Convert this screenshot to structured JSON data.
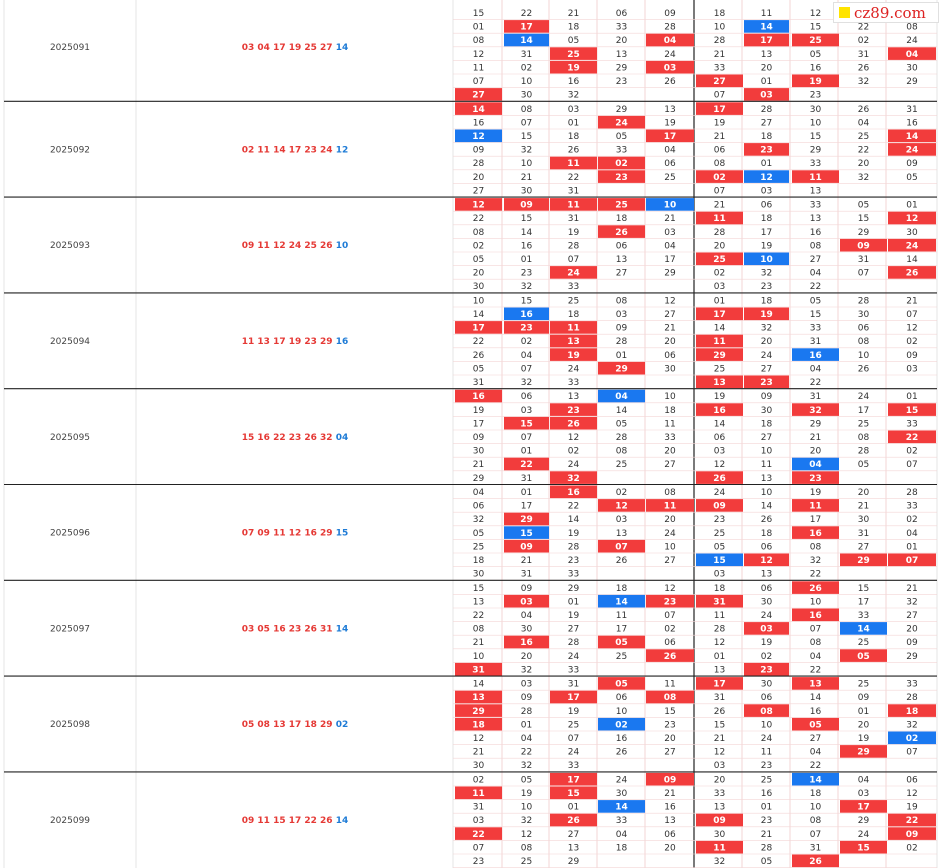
{
  "site_logo": {
    "text": "cz89.com",
    "mark_color": "#ffe400"
  },
  "colors": {
    "red_cell": "#f23c3c",
    "blue_cell": "#1a78f0",
    "red_text": "#e53935",
    "blue_text": "#1e7bd6",
    "grid": "#f3d6d6"
  },
  "chart_data": {
    "type": "table",
    "top_partial": {
      "left": [
        [
          15,
          22,
          21,
          6,
          9
        ],
        [
          1,
          17,
          18,
          33,
          28
        ],
        [
          8,
          14,
          5,
          20,
          4
        ],
        [
          12,
          31,
          25,
          13,
          24
        ],
        [
          11,
          2,
          19,
          29,
          3
        ],
        [
          7,
          10,
          16,
          23,
          26
        ],
        [
          27,
          30,
          32,
          null,
          null
        ]
      ],
      "right": [
        [
          18,
          11,
          12,
          null,
          null
        ],
        [
          10,
          14,
          15,
          22,
          8
        ],
        [
          28,
          17,
          25,
          2,
          24
        ],
        [
          21,
          13,
          5,
          31,
          4
        ],
        [
          33,
          20,
          16,
          26,
          30
        ],
        [
          27,
          1,
          19,
          32,
          29
        ],
        [
          7,
          3,
          23,
          null,
          null
        ]
      ]
    },
    "rows": [
      {
        "period": "2025091",
        "reds": [
          "03",
          "04",
          "17",
          "19",
          "25",
          "27"
        ],
        "blue": "14",
        "left": [
          [
            27,
            30,
            32,
            null,
            null
          ]
        ],
        "right": [
          [
            7,
            3,
            23,
            null,
            null
          ]
        ]
      },
      {
        "period": "2025092",
        "reds": [
          "02",
          "11",
          "14",
          "17",
          "23",
          "24"
        ],
        "blue": "12",
        "left": [
          [
            14,
            8,
            3,
            29,
            13
          ],
          [
            16,
            7,
            1,
            24,
            19
          ],
          [
            12,
            15,
            18,
            5,
            17
          ],
          [
            9,
            32,
            26,
            33,
            4
          ],
          [
            28,
            10,
            11,
            2,
            6
          ],
          [
            20,
            21,
            22,
            23,
            25
          ],
          [
            27,
            30,
            31,
            null,
            null
          ]
        ],
        "right": [
          [
            17,
            28,
            30,
            26,
            31
          ],
          [
            19,
            27,
            10,
            4,
            16
          ],
          [
            21,
            18,
            15,
            25,
            14
          ],
          [
            6,
            23,
            29,
            22,
            24
          ],
          [
            8,
            1,
            33,
            20,
            9
          ],
          [
            2,
            12,
            11,
            32,
            5
          ],
          [
            7,
            3,
            13,
            null,
            null
          ]
        ]
      },
      {
        "period": "2025093",
        "reds": [
          "09",
          "11",
          "12",
          "24",
          "25",
          "26"
        ],
        "blue": "10",
        "left": [
          [
            12,
            9,
            11,
            25,
            10
          ],
          [
            22,
            15,
            31,
            18,
            21
          ],
          [
            8,
            14,
            19,
            26,
            3
          ],
          [
            2,
            16,
            28,
            6,
            4
          ],
          [
            5,
            1,
            7,
            13,
            17
          ],
          [
            20,
            23,
            24,
            27,
            29
          ],
          [
            30,
            32,
            33,
            null,
            null
          ]
        ],
        "right": [
          [
            21,
            6,
            33,
            5,
            1
          ],
          [
            11,
            18,
            13,
            15,
            12
          ],
          [
            28,
            17,
            16,
            29,
            30
          ],
          [
            20,
            19,
            8,
            9,
            24
          ],
          [
            25,
            10,
            27,
            31,
            14
          ],
          [
            2,
            32,
            4,
            7,
            26
          ],
          [
            3,
            23,
            22,
            null,
            null
          ]
        ]
      },
      {
        "period": "2025094",
        "reds": [
          "11",
          "13",
          "17",
          "19",
          "23",
          "29"
        ],
        "blue": "16",
        "left": [
          [
            10,
            15,
            25,
            8,
            12
          ],
          [
            14,
            16,
            18,
            3,
            27
          ],
          [
            17,
            23,
            11,
            9,
            21
          ],
          [
            22,
            2,
            13,
            28,
            20
          ],
          [
            26,
            4,
            19,
            1,
            6
          ],
          [
            5,
            7,
            24,
            29,
            30
          ],
          [
            31,
            32,
            33,
            null,
            null
          ]
        ],
        "right": [
          [
            1,
            18,
            5,
            28,
            21
          ],
          [
            17,
            19,
            15,
            30,
            7
          ],
          [
            14,
            32,
            33,
            6,
            12
          ],
          [
            11,
            20,
            31,
            8,
            2
          ],
          [
            29,
            24,
            16,
            10,
            9
          ],
          [
            25,
            27,
            4,
            26,
            3
          ],
          [
            13,
            23,
            22,
            null,
            null
          ]
        ]
      },
      {
        "period": "2025095",
        "reds": [
          "15",
          "16",
          "22",
          "23",
          "26",
          "32"
        ],
        "blue": "04",
        "left": [
          [
            16,
            6,
            13,
            4,
            10
          ],
          [
            19,
            3,
            23,
            14,
            18
          ],
          [
            17,
            15,
            26,
            5,
            11
          ],
          [
            9,
            7,
            12,
            28,
            33
          ],
          [
            30,
            1,
            2,
            8,
            20
          ],
          [
            21,
            22,
            24,
            25,
            27
          ],
          [
            29,
            31,
            32,
            null,
            null
          ]
        ],
        "right": [
          [
            19,
            9,
            31,
            24,
            1
          ],
          [
            16,
            30,
            32,
            17,
            15
          ],
          [
            14,
            18,
            29,
            25,
            33
          ],
          [
            6,
            27,
            21,
            8,
            22
          ],
          [
            3,
            10,
            20,
            28,
            2
          ],
          [
            12,
            11,
            4,
            5,
            7
          ],
          [
            26,
            13,
            23,
            null,
            null
          ]
        ]
      },
      {
        "period": "2025096",
        "reds": [
          "07",
          "09",
          "11",
          "12",
          "16",
          "29"
        ],
        "blue": "15",
        "left": [
          [
            4,
            1,
            16,
            2,
            8
          ],
          [
            6,
            17,
            22,
            12,
            11
          ],
          [
            32,
            29,
            14,
            3,
            20
          ],
          [
            5,
            15,
            19,
            13,
            24
          ],
          [
            25,
            9,
            28,
            7,
            10
          ],
          [
            18,
            21,
            23,
            26,
            27
          ],
          [
            30,
            31,
            33,
            null,
            null
          ]
        ],
        "right": [
          [
            24,
            10,
            19,
            20,
            28
          ],
          [
            9,
            14,
            11,
            21,
            33
          ],
          [
            23,
            26,
            17,
            30,
            2
          ],
          [
            25,
            18,
            16,
            31,
            4
          ],
          [
            5,
            6,
            8,
            27,
            1
          ],
          [
            15,
            12,
            32,
            29,
            7
          ],
          [
            3,
            13,
            22,
            null,
            null
          ]
        ]
      },
      {
        "period": "2025097",
        "reds": [
          "03",
          "05",
          "16",
          "23",
          "26",
          "31"
        ],
        "blue": "14",
        "left": [
          [
            15,
            9,
            29,
            18,
            12
          ],
          [
            13,
            3,
            1,
            14,
            23
          ],
          [
            22,
            4,
            19,
            11,
            7
          ],
          [
            8,
            30,
            27,
            17,
            2
          ],
          [
            21,
            16,
            28,
            5,
            6
          ],
          [
            10,
            20,
            24,
            25,
            26
          ],
          [
            31,
            32,
            33,
            null,
            null
          ]
        ],
        "right": [
          [
            18,
            6,
            26,
            15,
            21
          ],
          [
            31,
            30,
            10,
            17,
            32
          ],
          [
            11,
            24,
            16,
            33,
            27
          ],
          [
            28,
            3,
            7,
            14,
            20
          ],
          [
            12,
            19,
            8,
            25,
            9
          ],
          [
            1,
            2,
            4,
            5,
            29
          ],
          [
            13,
            23,
            22,
            null,
            null
          ]
        ]
      },
      {
        "period": "2025098",
        "reds": [
          "05",
          "08",
          "13",
          "17",
          "18",
          "29"
        ],
        "blue": "02",
        "left": [
          [
            14,
            3,
            31,
            5,
            11
          ],
          [
            13,
            9,
            17,
            6,
            8
          ],
          [
            29,
            28,
            19,
            10,
            15
          ],
          [
            18,
            1,
            25,
            2,
            23
          ],
          [
            12,
            4,
            7,
            16,
            20
          ],
          [
            21,
            22,
            24,
            26,
            27
          ],
          [
            30,
            32,
            33,
            null,
            null
          ]
        ],
        "right": [
          [
            17,
            30,
            13,
            25,
            33
          ],
          [
            31,
            6,
            14,
            9,
            28
          ],
          [
            26,
            8,
            16,
            1,
            18
          ],
          [
            15,
            10,
            5,
            20,
            32
          ],
          [
            21,
            24,
            27,
            19,
            2
          ],
          [
            12,
            11,
            4,
            29,
            7
          ],
          [
            3,
            23,
            22,
            null,
            null
          ]
        ]
      },
      {
        "period": "2025099",
        "reds": [
          "09",
          "11",
          "15",
          "17",
          "22",
          "26"
        ],
        "blue": "14",
        "left": [
          [
            2,
            5,
            17,
            24,
            9
          ],
          [
            11,
            19,
            15,
            30,
            21
          ],
          [
            31,
            10,
            1,
            14,
            16
          ],
          [
            3,
            32,
            26,
            33,
            13
          ],
          [
            22,
            12,
            27,
            4,
            6
          ],
          [
            7,
            8,
            13,
            18,
            20
          ],
          [
            23,
            25,
            29,
            null,
            null
          ]
        ],
        "right": [
          [
            20,
            25,
            14,
            4,
            6
          ],
          [
            33,
            16,
            18,
            3,
            12
          ],
          [
            13,
            1,
            10,
            17,
            19
          ],
          [
            9,
            23,
            8,
            29,
            22
          ],
          [
            30,
            21,
            7,
            24,
            9
          ],
          [
            11,
            28,
            31,
            15,
            2
          ],
          [
            32,
            5,
            26,
            null,
            null
          ]
        ]
      }
    ]
  }
}
